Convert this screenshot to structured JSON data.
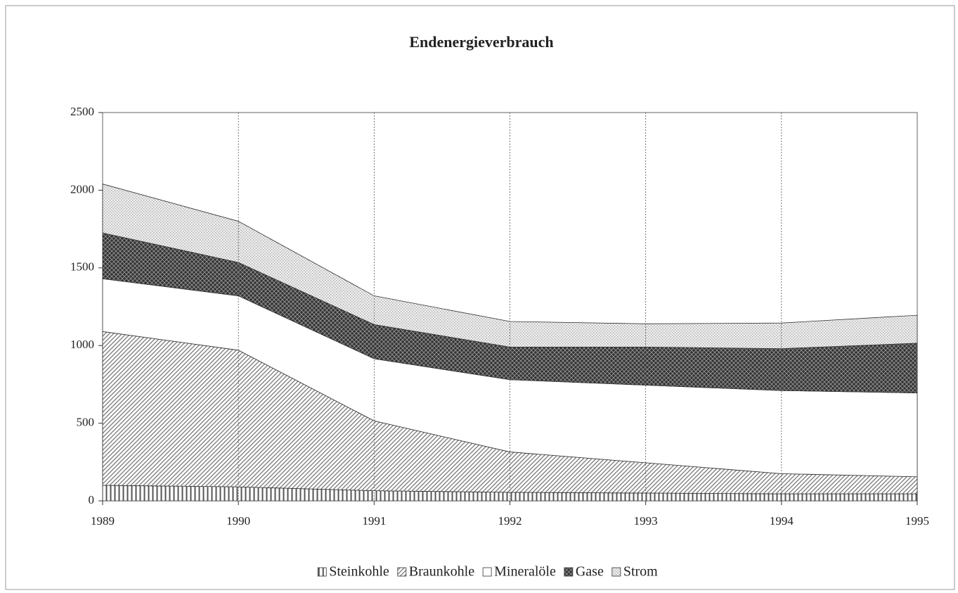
{
  "chart_data": {
    "type": "stacked_area",
    "title": "Endenergieverbrauch",
    "categories": [
      "1989",
      "1990",
      "1991",
      "1992",
      "1993",
      "1994",
      "1995"
    ],
    "series": [
      {
        "name": "Steinkohle",
        "color": "#555555",
        "values": [
          100,
          90,
          65,
          55,
          50,
          45,
          45
        ]
      },
      {
        "name": "Braunkohle",
        "color": "#777777",
        "values": [
          990,
          880,
          450,
          260,
          195,
          130,
          110
        ]
      },
      {
        "name": "Mineralöle",
        "color": "#ffffff",
        "values": [
          340,
          350,
          400,
          465,
          500,
          535,
          540
        ]
      },
      {
        "name": "Gase",
        "color": "#333333",
        "values": [
          295,
          215,
          220,
          210,
          245,
          270,
          320
        ]
      },
      {
        "name": "Strom",
        "color": "#aaaaaa",
        "values": [
          315,
          265,
          185,
          165,
          150,
          165,
          180
        ]
      }
    ],
    "ylim": [
      0,
      2500
    ],
    "yticks": [
      0,
      500,
      1000,
      1500,
      2000,
      2500
    ],
    "legend": "bottom",
    "grid": "x"
  }
}
